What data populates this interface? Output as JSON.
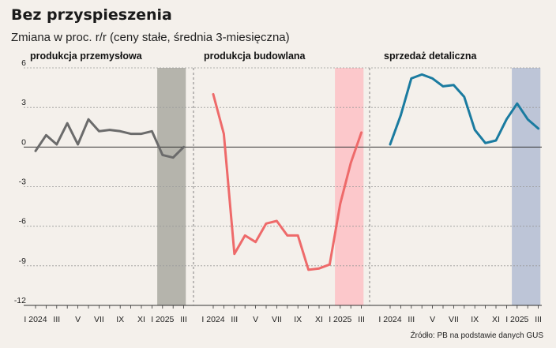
{
  "title": "Bez przyspieszenia",
  "subtitle": "Zmiana w proc. r/r (ceny stałe, średnia 3-miesięczna)",
  "source": "Źródło: PB na podstawie danych GUS",
  "chart_data": {
    "type": "line",
    "ylim": [
      -12,
      6
    ],
    "yticks": [
      6,
      3,
      0,
      -3,
      -6,
      -9,
      -12
    ],
    "ytick_labels": [
      "6",
      "3",
      "0",
      "-3",
      "-6",
      "-9",
      "-12"
    ],
    "x": [
      "I 2024",
      "II",
      "III",
      "IV",
      "V",
      "VI",
      "VII",
      "VIII",
      "IX",
      "X",
      "XI",
      "XII",
      "I 2025",
      "II",
      "III"
    ],
    "xtick_labels": [
      "I 2024",
      "",
      "III",
      "",
      "V",
      "",
      "VII",
      "",
      "IX",
      "",
      "XI",
      "",
      "I 2025",
      "",
      "III"
    ],
    "highlight_start": "I 2025",
    "panels": [
      {
        "name": "produkcja przemysłowa",
        "color": "#6b6b6b",
        "band_color": "#b5b4ac",
        "values": [
          -0.3,
          0.9,
          0.2,
          1.8,
          0.2,
          2.1,
          1.2,
          1.3,
          1.2,
          1.0,
          1.0,
          1.2,
          -0.6,
          -0.8,
          0.0
        ]
      },
      {
        "name": "produkcja budowlana",
        "color": "#ee6a6a",
        "band_color": "#fcc8cb",
        "values": [
          4.0,
          1.0,
          -8.1,
          -6.7,
          -7.2,
          -5.8,
          -5.6,
          -6.7,
          -6.7,
          -9.3,
          -9.2,
          -8.9,
          -4.3,
          -1.2,
          1.1
        ]
      },
      {
        "name": "sprzedaż detaliczna",
        "color": "#1a7ba0",
        "band_color": "#bdc5d7",
        "values": [
          0.2,
          2.4,
          5.2,
          5.5,
          5.2,
          4.6,
          4.7,
          3.8,
          1.3,
          0.3,
          0.5,
          2.1,
          3.3,
          2.1,
          1.4
        ]
      }
    ]
  }
}
